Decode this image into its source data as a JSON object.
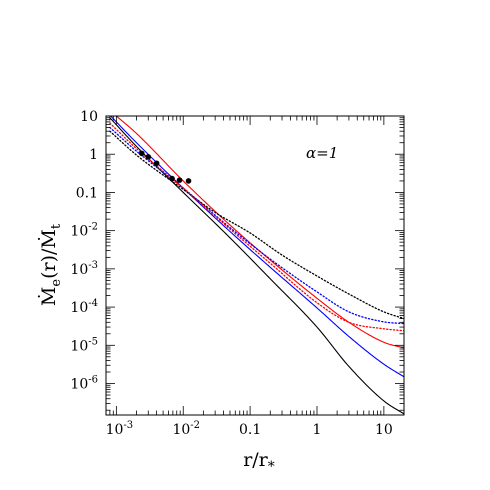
{
  "chart_data": {
    "type": "line",
    "title": "",
    "xscale": "log",
    "yscale": "log",
    "xlim": [
      0.0007,
      20
    ],
    "ylim": [
      1.5e-07,
      10
    ],
    "xticks": [
      {
        "v": 0.001,
        "m": "10",
        "e": "-3"
      },
      {
        "v": 0.01,
        "m": "10",
        "e": "-2"
      },
      {
        "v": 0.1,
        "m": "0.1",
        "e": ""
      },
      {
        "v": 1,
        "m": "1",
        "e": ""
      },
      {
        "v": 10,
        "m": "10",
        "e": ""
      }
    ],
    "yticks": [
      {
        "v": 10,
        "m": "10",
        "e": ""
      },
      {
        "v": 1,
        "m": "1",
        "e": ""
      },
      {
        "v": 0.1,
        "m": "0.1",
        "e": ""
      },
      {
        "v": 0.01,
        "m": "10",
        "e": "-2"
      },
      {
        "v": 0.001,
        "m": "10",
        "e": "-3"
      },
      {
        "v": 0.0001,
        "m": "10",
        "e": "-4"
      },
      {
        "v": 1e-05,
        "m": "10",
        "e": "-5"
      },
      {
        "v": 1e-06,
        "m": "10",
        "e": "-6"
      }
    ],
    "xlabel": "r/r*",
    "ylabel": "Ṁe(r)/Ṁt",
    "annotation": "α=1",
    "grid": false,
    "series": [
      {
        "color": "#000000",
        "dash": "solid",
        "x": [
          0.0008,
          0.002,
          0.01,
          0.05,
          0.2,
          1,
          3,
          10,
          20
        ],
        "y": [
          9.0,
          1.6,
          0.1,
          0.0065,
          0.00055,
          3e-05,
          2.8e-06,
          3.5e-07,
          1.6e-07
        ]
      },
      {
        "color": "#0000ff",
        "dash": "solid",
        "x": [
          0.0008,
          0.002,
          0.01,
          0.05,
          0.2,
          1,
          3,
          10,
          20
        ],
        "y": [
          10.5,
          2.0,
          0.13,
          0.0095,
          0.0011,
          9.5e-05,
          1.7e-05,
          3.2e-06,
          1.5e-06
        ]
      },
      {
        "color": "#ff0000",
        "dash": "solid",
        "x": [
          0.001,
          0.002,
          0.01,
          0.05,
          0.2,
          1,
          3,
          10,
          20
        ],
        "y": [
          10.0,
          3.5,
          0.2,
          0.014,
          0.0017,
          0.00017,
          4e-05,
          1.2e-05,
          8.5e-06
        ]
      },
      {
        "color": "#000000",
        "dash": "dotted",
        "x": [
          0.0008,
          0.002,
          0.01,
          0.03,
          0.1,
          0.3,
          1,
          3,
          10,
          20
        ],
        "y": [
          4.0,
          0.95,
          0.12,
          0.03,
          0.0087,
          0.0023,
          0.00065,
          0.00022,
          7.5e-05,
          5e-05
        ]
      },
      {
        "color": "#0000ff",
        "dash": "dotted",
        "x": [
          0.0008,
          0.002,
          0.01,
          0.05,
          0.2,
          1,
          3,
          10,
          20
        ],
        "y": [
          5.0,
          1.2,
          0.13,
          0.012,
          0.0018,
          0.00025,
          7.5e-05,
          4.1e-05,
          3.7e-05
        ]
      },
      {
        "color": "#ff0000",
        "dash": "dotted",
        "x": [
          0.0008,
          0.002,
          0.01,
          0.05,
          0.2,
          1,
          3,
          10,
          20
        ],
        "y": [
          6.5,
          1.4,
          0.13,
          0.011,
          0.0014,
          0.00013,
          4e-05,
          2.7e-05,
          2.4e-05
        ]
      }
    ],
    "points": {
      "color": "#000000",
      "x": [
        0.0024,
        0.003,
        0.004,
        0.0068,
        0.0088,
        0.012
      ],
      "y": [
        1.05,
        0.85,
        0.58,
        0.23,
        0.21,
        0.2
      ]
    }
  }
}
